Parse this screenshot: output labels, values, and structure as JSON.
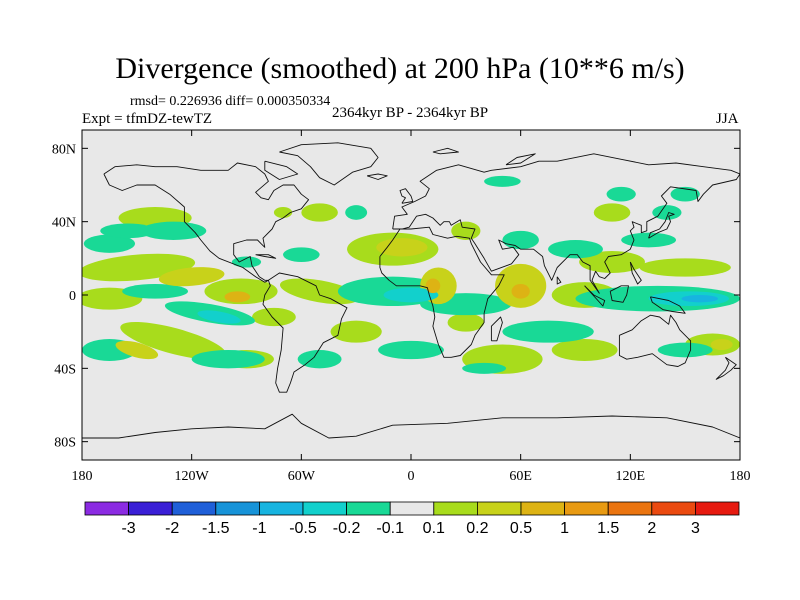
{
  "chart_data": {
    "type": "heatmap",
    "title": "Divergence (smoothed) at 200 hPa (10**6 m/s)",
    "stats": "rmsd= 0.226936 diff= 0.000350334",
    "experiment": "Expt = tfmDZ-tewTZ",
    "period": "2364kyr BP - 2364kyr BP",
    "season": "JJA",
    "xlim": [
      -180,
      180
    ],
    "ylim": [
      -90,
      90
    ],
    "x_ticks": [
      {
        "value": -180,
        "label": "180"
      },
      {
        "value": -120,
        "label": "120W"
      },
      {
        "value": -60,
        "label": "60W"
      },
      {
        "value": 0,
        "label": "0"
      },
      {
        "value": 60,
        "label": "60E"
      },
      {
        "value": 120,
        "label": "120E"
      },
      {
        "value": 180,
        "label": "180"
      }
    ],
    "y_ticks": [
      {
        "value": 80,
        "label": "80N"
      },
      {
        "value": 40,
        "label": "40N"
      },
      {
        "value": 0,
        "label": "0"
      },
      {
        "value": -40,
        "label": "40S"
      },
      {
        "value": -80,
        "label": "80S"
      }
    ],
    "colorbar": {
      "colors": [
        "#8b2be2",
        "#3a1fd6",
        "#1f5fd8",
        "#1793d8",
        "#17b4e0",
        "#12d0cc",
        "#19d996",
        "#e8e8e8",
        "#a8dc1c",
        "#c8d21a",
        "#ddb314",
        "#e89a12",
        "#ea7410",
        "#ea4a10",
        "#e61a10"
      ],
      "labels": [
        "-3",
        "-2",
        "-1.5",
        "-1",
        "-0.5",
        "-0.2",
        "-0.1",
        "0.1",
        "0.2",
        "0.5",
        "1",
        "1.5",
        "2",
        "3"
      ]
    },
    "field_blobs": [
      {
        "lon": -150,
        "lat": 15,
        "rx": 32,
        "ry": 7,
        "level": 1,
        "rot": -5
      },
      {
        "lon": -120,
        "lat": 10,
        "rx": 18,
        "ry": 5,
        "level": 2,
        "rot": -5
      },
      {
        "lon": -93,
        "lat": 2,
        "rx": 20,
        "ry": 7,
        "level": 1,
        "rot": 0
      },
      {
        "lon": -95,
        "lat": -1,
        "rx": 7,
        "ry": 3,
        "level": 3,
        "rot": 0
      },
      {
        "lon": -165,
        "lat": -2,
        "rx": 18,
        "ry": 6,
        "level": 1,
        "rot": 0
      },
      {
        "lon": -50,
        "lat": 2,
        "rx": 22,
        "ry": 6,
        "level": 1,
        "rot": 10
      },
      {
        "lon": -75,
        "lat": -12,
        "rx": 12,
        "ry": 5,
        "level": 1,
        "rot": 0
      },
      {
        "lon": -10,
        "lat": 25,
        "rx": 25,
        "ry": 9,
        "level": 1,
        "rot": 0
      },
      {
        "lon": -5,
        "lat": 26,
        "rx": 14,
        "ry": 5,
        "level": 2,
        "rot": 0
      },
      {
        "lon": 15,
        "lat": 5,
        "rx": 10,
        "ry": 10,
        "level": 2,
        "rot": 0
      },
      {
        "lon": 12,
        "lat": 5,
        "rx": 4,
        "ry": 4,
        "level": 3,
        "rot": 0
      },
      {
        "lon": 60,
        "lat": 5,
        "rx": 14,
        "ry": 12,
        "level": 2,
        "rot": 0
      },
      {
        "lon": 60,
        "lat": 2,
        "rx": 5,
        "ry": 4,
        "level": 3,
        "rot": 0
      },
      {
        "lon": 95,
        "lat": 0,
        "rx": 18,
        "ry": 7,
        "level": 1,
        "rot": 0
      },
      {
        "lon": 150,
        "lat": 15,
        "rx": 25,
        "ry": 5,
        "level": 1,
        "rot": 0
      },
      {
        "lon": 110,
        "lat": 18,
        "rx": 18,
        "ry": 6,
        "level": 1,
        "rot": 0
      },
      {
        "lon": -130,
        "lat": -25,
        "rx": 30,
        "ry": 7,
        "level": 1,
        "rot": 15
      },
      {
        "lon": -150,
        "lat": -30,
        "rx": 12,
        "ry": 4,
        "level": 2,
        "rot": 15
      },
      {
        "lon": -90,
        "lat": -35,
        "rx": 15,
        "ry": 5,
        "level": 1,
        "rot": 0
      },
      {
        "lon": -30,
        "lat": -20,
        "rx": 14,
        "ry": 6,
        "level": 1,
        "rot": 0
      },
      {
        "lon": 50,
        "lat": -35,
        "rx": 22,
        "ry": 8,
        "level": 1,
        "rot": 0
      },
      {
        "lon": 165,
        "lat": -27,
        "rx": 15,
        "ry": 6,
        "level": 1,
        "rot": 0
      },
      {
        "lon": 170,
        "lat": -27,
        "rx": 6,
        "ry": 3,
        "level": 2,
        "rot": 0
      },
      {
        "lon": 95,
        "lat": -30,
        "rx": 18,
        "ry": 6,
        "level": 1,
        "rot": 0
      },
      {
        "lon": 30,
        "lat": -15,
        "rx": 10,
        "ry": 5,
        "level": 1,
        "rot": 0
      },
      {
        "lon": -140,
        "lat": 42,
        "rx": 20,
        "ry": 6,
        "level": 1,
        "rot": 0
      },
      {
        "lon": -50,
        "lat": 45,
        "rx": 10,
        "ry": 5,
        "level": 1,
        "rot": 0
      },
      {
        "lon": 30,
        "lat": 35,
        "rx": 8,
        "ry": 5,
        "level": 1,
        "rot": 0
      },
      {
        "lon": 110,
        "lat": 45,
        "rx": 10,
        "ry": 5,
        "level": 1,
        "rot": 0
      },
      {
        "lon": -70,
        "lat": 45,
        "rx": 5,
        "ry": 3,
        "level": 1,
        "rot": 0
      },
      {
        "lon": -130,
        "lat": 35,
        "rx": 18,
        "ry": 5,
        "level": -1,
        "rot": 0
      },
      {
        "lon": -165,
        "lat": 28,
        "rx": 14,
        "ry": 5,
        "level": -1,
        "rot": 0
      },
      {
        "lon": -140,
        "lat": 2,
        "rx": 18,
        "ry": 4,
        "level": -1,
        "rot": 0
      },
      {
        "lon": -110,
        "lat": -10,
        "rx": 25,
        "ry": 5,
        "level": -1,
        "rot": 10
      },
      {
        "lon": -105,
        "lat": -12,
        "rx": 12,
        "ry": 3,
        "level": -2,
        "rot": 10
      },
      {
        "lon": -10,
        "lat": 2,
        "rx": 30,
        "ry": 8,
        "level": -1,
        "rot": 0
      },
      {
        "lon": 0,
        "lat": 0,
        "rx": 15,
        "ry": 4,
        "level": -2,
        "rot": 0
      },
      {
        "lon": 30,
        "lat": -5,
        "rx": 25,
        "ry": 6,
        "level": -1,
        "rot": 0
      },
      {
        "lon": 135,
        "lat": -2,
        "rx": 45,
        "ry": 7,
        "level": -1,
        "rot": 0
      },
      {
        "lon": 152,
        "lat": -2,
        "rx": 22,
        "ry": 4,
        "level": -2,
        "rot": 0
      },
      {
        "lon": 158,
        "lat": -2,
        "rx": 10,
        "ry": 2,
        "level": -3,
        "rot": 0
      },
      {
        "lon": -165,
        "lat": -30,
        "rx": 15,
        "ry": 6,
        "level": -1,
        "rot": 0
      },
      {
        "lon": -100,
        "lat": -35,
        "rx": 20,
        "ry": 5,
        "level": -1,
        "rot": 0
      },
      {
        "lon": -155,
        "lat": 35,
        "rx": 15,
        "ry": 4,
        "level": -1,
        "rot": 0
      },
      {
        "lon": -30,
        "lat": 45,
        "rx": 6,
        "ry": 4,
        "level": -1,
        "rot": 0
      },
      {
        "lon": 90,
        "lat": 25,
        "rx": 15,
        "ry": 5,
        "level": -1,
        "rot": 0
      },
      {
        "lon": 60,
        "lat": 30,
        "rx": 10,
        "ry": 5,
        "level": -1,
        "rot": 0
      },
      {
        "lon": 75,
        "lat": -20,
        "rx": 25,
        "ry": 6,
        "level": -1,
        "rot": 0
      },
      {
        "lon": 150,
        "lat": -30,
        "rx": 15,
        "ry": 4,
        "level": -1,
        "rot": 0
      },
      {
        "lon": 130,
        "lat": 30,
        "rx": 15,
        "ry": 4,
        "level": -1,
        "rot": 0
      },
      {
        "lon": 140,
        "lat": 45,
        "rx": 8,
        "ry": 4,
        "level": -1,
        "rot": 0
      },
      {
        "lon": 40,
        "lat": -40,
        "rx": 12,
        "ry": 3,
        "level": -1,
        "rot": 0
      },
      {
        "lon": 0,
        "lat": -30,
        "rx": 18,
        "ry": 5,
        "level": -1,
        "rot": 0
      },
      {
        "lon": -50,
        "lat": -35,
        "rx": 12,
        "ry": 5,
        "level": -1,
        "rot": 0
      },
      {
        "lon": -60,
        "lat": 22,
        "rx": 10,
        "ry": 4,
        "level": -1,
        "rot": 0
      },
      {
        "lon": -90,
        "lat": 18,
        "rx": 8,
        "ry": 3,
        "level": -1,
        "rot": 0
      },
      {
        "lon": 115,
        "lat": 55,
        "rx": 8,
        "ry": 4,
        "level": -1,
        "rot": 0
      },
      {
        "lon": 50,
        "lat": 62,
        "rx": 10,
        "ry": 3,
        "level": -1,
        "rot": 0
      },
      {
        "lon": 150,
        "lat": 55,
        "rx": 8,
        "ry": 4,
        "level": -1,
        "rot": 0
      }
    ]
  }
}
